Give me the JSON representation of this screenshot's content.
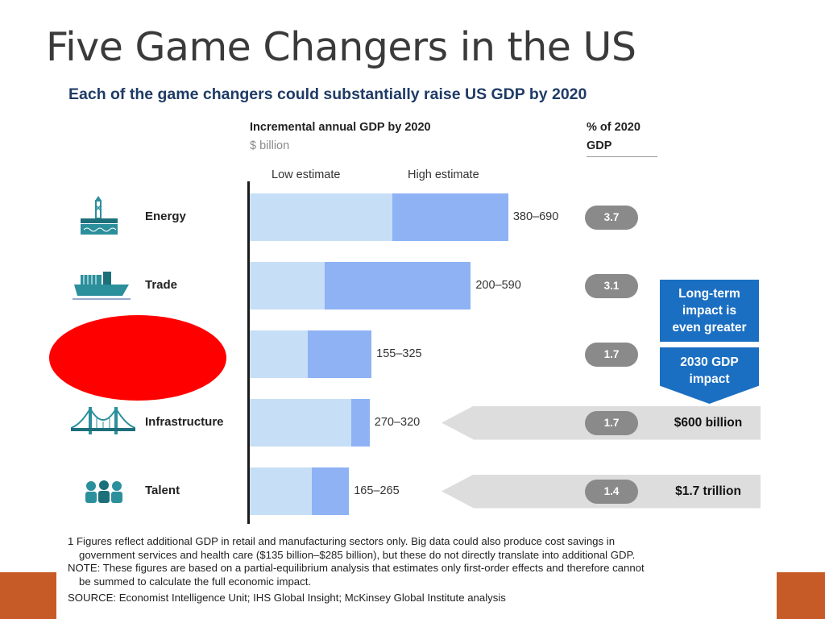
{
  "slide": {
    "title": "Five Game Changers in the US"
  },
  "figure": {
    "subtitle": "Each of the game changers could substantially raise US GDP by 2020",
    "header_gdp": "Incremental annual GDP by 2020",
    "header_unit": "$ billion",
    "header_pct_line1": "% of 2020",
    "header_pct_line2": "GDP",
    "legend_low": "Low estimate",
    "legend_high": "High estimate",
    "callout_top": [
      "Long-term",
      "impact is",
      "even greater"
    ],
    "callout_bottom": [
      "2030 GDP",
      "impact"
    ],
    "footnotes": {
      "note1_line1": "1  Figures reflect  additional GDP in retail and manufacturing sectors only. Big data could also produce cost savings in",
      "note1_line2": "government services and health care ($135 billion–$285 billion), but these  do not directly translate into  additional GDP.",
      "note2_line1": "NOTE: These figures are based on a partial-equilibrium analysis that estimates only first-order effects and therefore cannot",
      "note2_line2": "be summed to calculate the full economic impact.",
      "source": "SOURCE: Economist Intelligence Unit; IHS Global Insight; McKinsey Global Institute analysis"
    }
  },
  "colors": {
    "low_estimate": "#c6dff6",
    "high_estimate": "#8eb2f4",
    "callout": "#1b6fc2",
    "subtitle": "#1f3b66",
    "pct_pill": "#8a8a8a",
    "accent": "#c75b28",
    "redaction": "#ff0000"
  },
  "chart_data": {
    "type": "bar",
    "orientation": "horizontal",
    "title": "Each of the game changers could substantially raise US GDP by 2020",
    "xlabel": "Incremental annual GDP by 2020",
    "unit": "$ billion",
    "categories": [
      "Energy",
      "Trade",
      "",
      "Infrastructure",
      "Talent"
    ],
    "series": [
      {
        "name": "Low estimate",
        "values": [
          380,
          200,
          155,
          270,
          165
        ]
      },
      {
        "name": "High estimate",
        "values": [
          690,
          590,
          325,
          320,
          265
        ]
      }
    ],
    "range_labels": [
      "380–690",
      "200–590",
      "155–325",
      "270–320",
      "165–265"
    ],
    "pct_of_2020_gdp": [
      "3.7",
      "3.1",
      "1.7",
      "1.7",
      "1.4"
    ],
    "gdp_2030_impact": [
      "",
      "",
      "",
      "$600 billion",
      "$1.7 trillion"
    ],
    "icons": [
      "oil-rig-icon",
      "cargo-ship-icon",
      "",
      "suspension-bridge-icon",
      "people-icon"
    ],
    "xlim": [
      0,
      700
    ],
    "grid": false
  }
}
